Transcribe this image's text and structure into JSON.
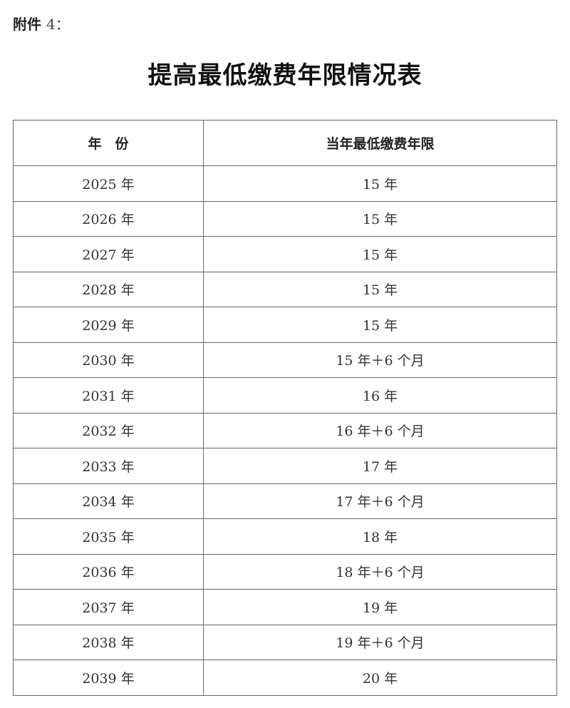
{
  "attachment_label": "附件",
  "attachment_number": "4：",
  "title": "提高最低缴费年限情况表",
  "table": {
    "headers": [
      "年　份",
      "当年最低缴费年限"
    ],
    "rows": [
      [
        "2025 年",
        "15 年"
      ],
      [
        "2026 年",
        "15 年"
      ],
      [
        "2027 年",
        "15 年"
      ],
      [
        "2028 年",
        "15 年"
      ],
      [
        "2029 年",
        "15 年"
      ],
      [
        "2030 年",
        "15 年＋6 个月"
      ],
      [
        "2031 年",
        "16 年"
      ],
      [
        "2032 年",
        "16 年＋6 个月"
      ],
      [
        "2033 年",
        "17 年"
      ],
      [
        "2034 年",
        "17 年＋6 个月"
      ],
      [
        "2035 年",
        "18 年"
      ],
      [
        "2036 年",
        "18 年＋6 个月"
      ],
      [
        "2037 年",
        "19 年"
      ],
      [
        "2038 年",
        "19 年＋6 个月"
      ],
      [
        "2039 年",
        "20 年"
      ]
    ]
  }
}
